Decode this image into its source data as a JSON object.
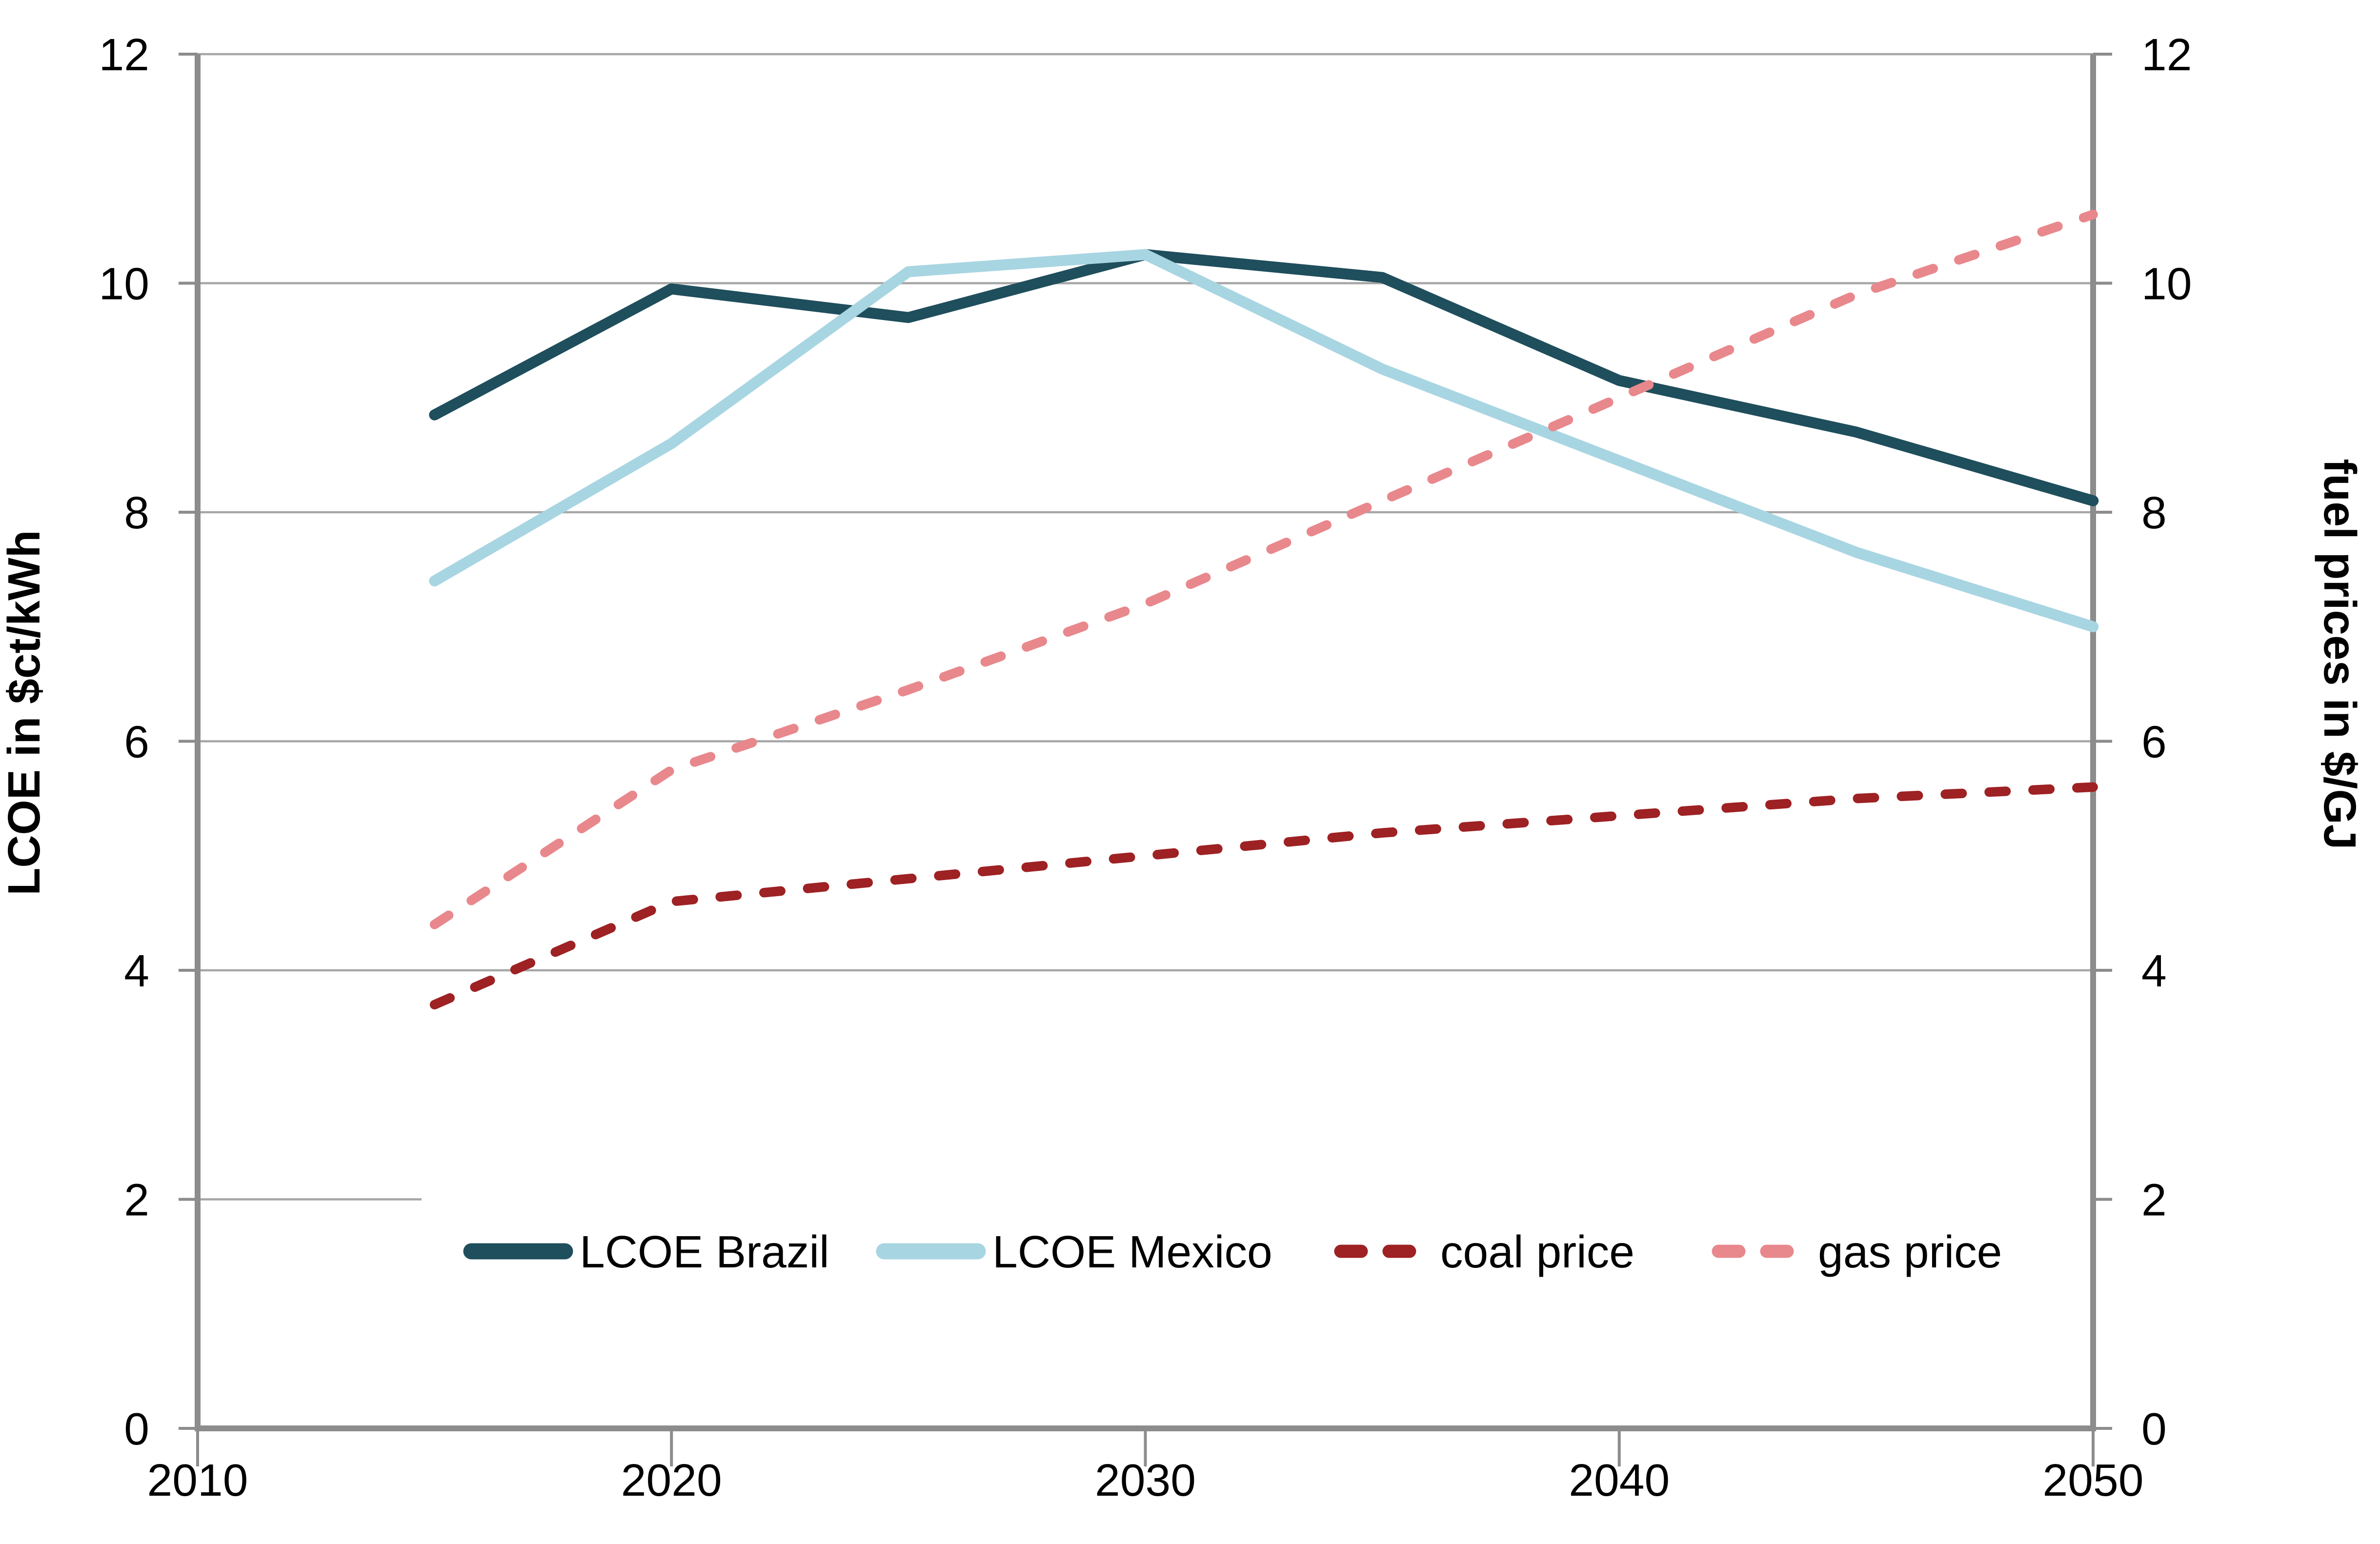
{
  "chart_data": {
    "type": "line",
    "title": "",
    "x": [
      2015,
      2020,
      2025,
      2030,
      2035,
      2040,
      2045,
      2050
    ],
    "series": [
      {
        "name": "LCOE Brazil",
        "axis": "left",
        "style": "solid",
        "color": "#1f4e5c",
        "values": [
          8.85,
          9.95,
          9.7,
          10.25,
          10.05,
          9.15,
          8.7,
          8.1
        ]
      },
      {
        "name": "LCOE Mexico",
        "axis": "left",
        "style": "solid",
        "color": "#a8d5e2",
        "values": [
          7.4,
          8.6,
          10.1,
          10.25,
          9.25,
          8.45,
          7.65,
          7.0
        ]
      },
      {
        "name": "coal price",
        "axis": "right",
        "style": "dashed",
        "color": "#9e2123",
        "values": [
          3.7,
          4.6,
          4.8,
          5.0,
          5.2,
          5.35,
          5.5,
          5.6
        ]
      },
      {
        "name": "gas price",
        "axis": "right",
        "style": "dashed",
        "color": "#e8888c",
        "values": [
          4.4,
          5.75,
          6.45,
          7.2,
          8.1,
          9.0,
          9.9,
          10.6
        ]
      }
    ],
    "ylabel_left": "LCOE in $ct/kWh",
    "ylabel_right": "fuel prices in $/GJ",
    "ylim": [
      0,
      12
    ],
    "ytick_step": 2,
    "yticks": [
      0,
      2,
      4,
      6,
      8,
      10,
      12
    ],
    "xlim": [
      2010,
      2050
    ],
    "xticks": [
      2010,
      2020,
      2030,
      2040,
      2050
    ],
    "grid": true,
    "legend_position": "bottom-inside",
    "legend_labels": [
      "LCOE Brazil",
      "LCOE Mexico",
      "coal price",
      "gas price"
    ],
    "colors": {
      "gridline": "#a6a6a6",
      "axis": "#8c8c8c",
      "text": "#000000",
      "background": "#ffffff"
    }
  }
}
